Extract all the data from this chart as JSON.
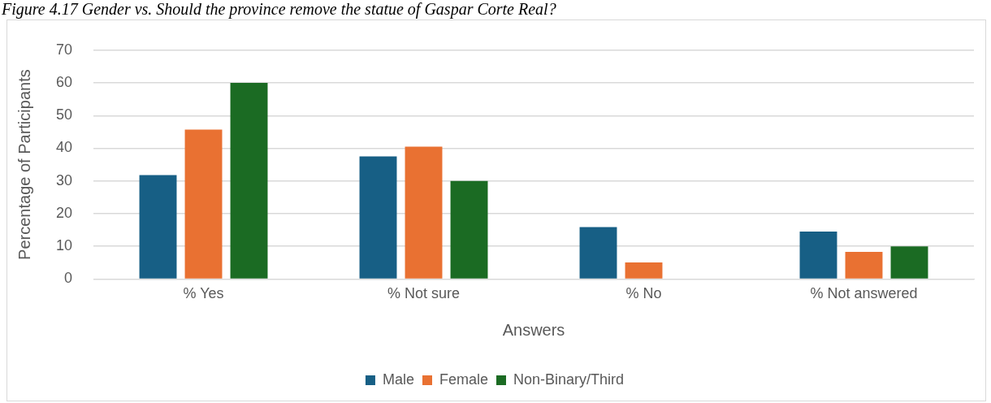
{
  "chart_data": {
    "type": "bar",
    "title": "Figure 4.17 Gender vs. Should the province remove the statue of Gaspar Corte Real?",
    "xlabel": "Answers",
    "ylabel": "Percentage of Participants",
    "categories": [
      "% Yes",
      "% Not sure",
      "% No",
      "% Not answered"
    ],
    "series": [
      {
        "name": "Male",
        "color": "#175f85",
        "values": [
          31.8,
          37.5,
          15.9,
          14.5
        ]
      },
      {
        "name": "Female",
        "color": "#e97132",
        "values": [
          45.7,
          40.5,
          5.1,
          8.3
        ]
      },
      {
        "name": "Non-Binary/Third",
        "color": "#1b6b23",
        "values": [
          60,
          30,
          0,
          10
        ]
      }
    ],
    "ylim": [
      0,
      70
    ],
    "yticks": [
      0,
      10,
      20,
      30,
      40,
      50,
      60,
      70
    ],
    "grid": "y",
    "legend": "bottom"
  }
}
